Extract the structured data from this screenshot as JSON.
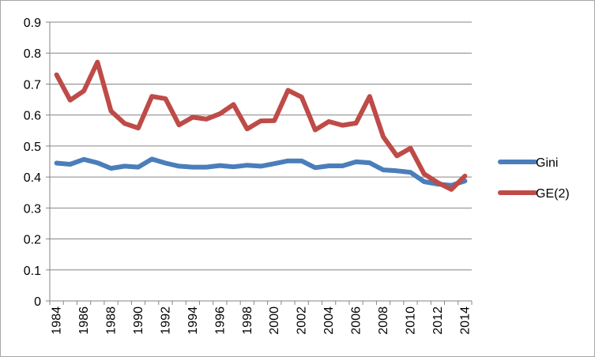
{
  "chart_data": {
    "type": "line",
    "title": "",
    "xlabel": "",
    "ylabel": "",
    "ylim": [
      0,
      0.9
    ],
    "yticks": [
      "0",
      "0.1",
      "0.2",
      "0.3",
      "0.4",
      "0.5",
      "0.6",
      "0.7",
      "0.8",
      "0.9"
    ],
    "xticks": [
      "1984",
      "1986",
      "1988",
      "1990",
      "1992",
      "1994",
      "1996",
      "1998",
      "2000",
      "2002",
      "2004",
      "2006",
      "2008",
      "2010",
      "2012",
      "2014"
    ],
    "x": [
      1984,
      1985,
      1986,
      1987,
      1988,
      1989,
      1990,
      1991,
      1992,
      1993,
      1994,
      1995,
      1996,
      1997,
      1998,
      1999,
      2000,
      2001,
      2002,
      2003,
      2004,
      2005,
      2006,
      2007,
      2008,
      2009,
      2010,
      2011,
      2012,
      2013,
      2014
    ],
    "grid": true,
    "legend_position": "right",
    "series": [
      {
        "name": "Gini",
        "color": "#4a7ebb",
        "values": [
          0.445,
          0.441,
          0.457,
          0.446,
          0.428,
          0.435,
          0.432,
          0.458,
          0.445,
          0.435,
          0.432,
          0.432,
          0.437,
          0.433,
          0.438,
          0.435,
          0.443,
          0.452,
          0.452,
          0.43,
          0.436,
          0.436,
          0.449,
          0.446,
          0.423,
          0.42,
          0.415,
          0.385,
          0.377,
          0.373,
          0.387
        ]
      },
      {
        "name": "GE(2)",
        "color": "#be4b48",
        "values": [
          0.73,
          0.648,
          0.678,
          0.771,
          0.613,
          0.573,
          0.558,
          0.66,
          0.653,
          0.568,
          0.593,
          0.587,
          0.604,
          0.634,
          0.555,
          0.581,
          0.582,
          0.68,
          0.658,
          0.552,
          0.579,
          0.567,
          0.574,
          0.66,
          0.53,
          0.468,
          0.493,
          0.41,
          0.382,
          0.36,
          0.403
        ]
      }
    ]
  }
}
